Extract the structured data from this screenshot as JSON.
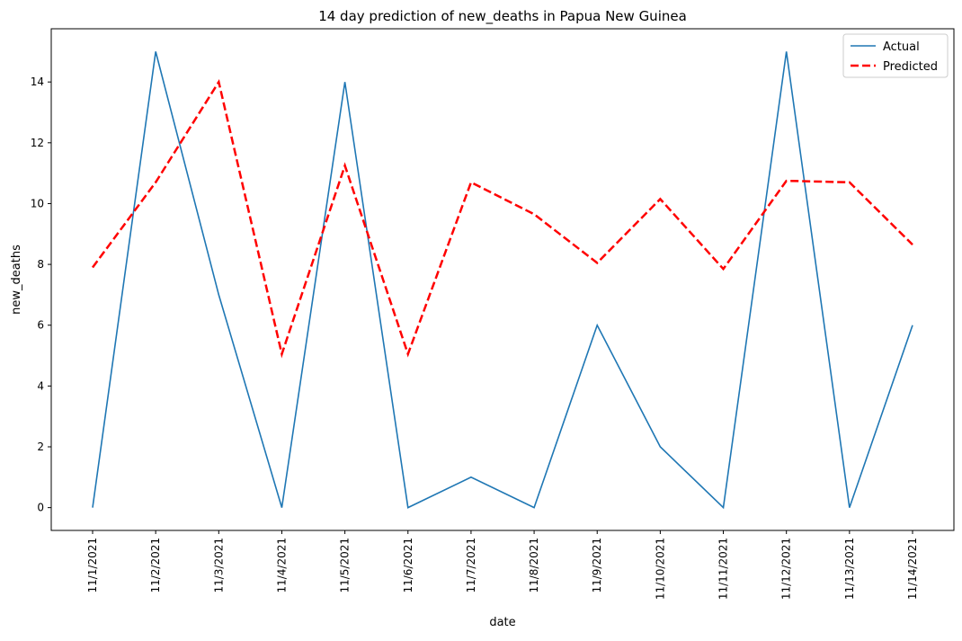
{
  "chart_data": {
    "type": "line",
    "title": "14 day prediction of new_deaths in Papua New Guinea",
    "xlabel": "date",
    "ylabel": "new_deaths",
    "categories": [
      "11/1/2021",
      "11/2/2021",
      "11/3/2021",
      "11/4/2021",
      "11/5/2021",
      "11/6/2021",
      "11/7/2021",
      "11/8/2021",
      "11/9/2021",
      "11/10/2021",
      "11/11/2021",
      "11/12/2021",
      "11/13/2021",
      "11/14/2021"
    ],
    "yticks": [
      0,
      2,
      4,
      6,
      8,
      10,
      12,
      14
    ],
    "ylim": [
      -0.75,
      15.75
    ],
    "grid": false,
    "legend_position": "top-right",
    "series": [
      {
        "name": "Actual",
        "style": "solid",
        "color": "#1f77b4",
        "values": [
          0,
          15,
          7,
          0,
          14,
          0,
          1,
          0,
          6,
          2,
          0,
          15,
          0,
          6
        ]
      },
      {
        "name": "Predicted",
        "style": "dashed",
        "color": "#ff0000",
        "values": [
          7.9,
          10.7,
          14.0,
          5.05,
          11.25,
          5.05,
          10.7,
          9.65,
          8.05,
          10.15,
          7.85,
          10.75,
          10.7,
          8.65
        ]
      }
    ]
  }
}
